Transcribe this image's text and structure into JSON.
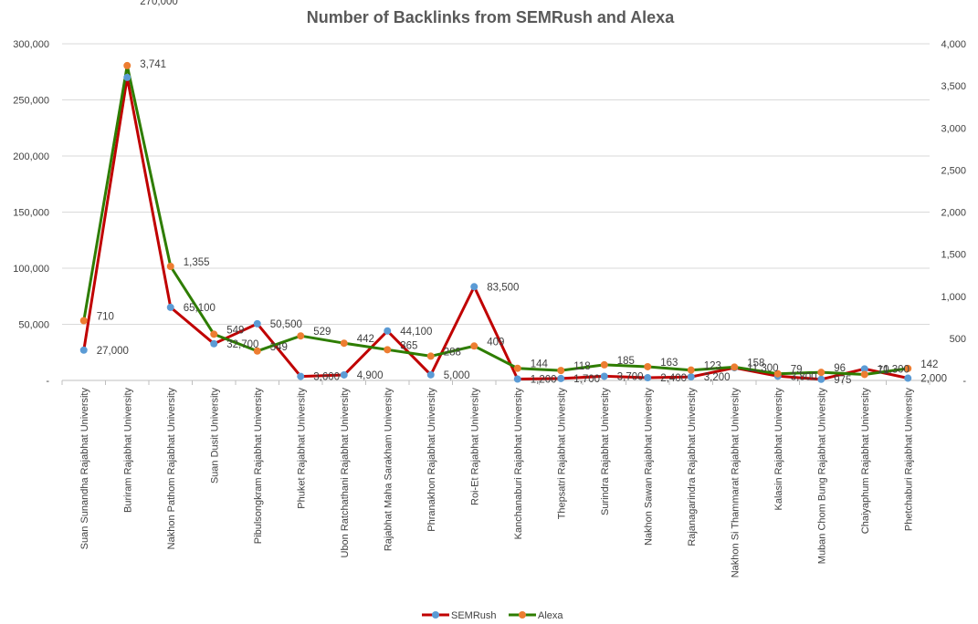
{
  "chart_data": {
    "type": "line",
    "title": "Number of Backlinks from SEMRush and Alexa",
    "categories": [
      "Suan Sunandha Rajabhat University",
      "Buriram Rajabhat University",
      "Nakhon Pathom Rajabhat University",
      "Suan Dusit University",
      "Pibulsongkram Rajabhat University",
      "Phuket Rajabhat University",
      "Ubon Ratchathani Rajabhat University",
      "Rajabhat Maha Sarakham University",
      "Phranakhon Rajabhat University",
      "Roi-Et Rajabhat University",
      "Kanchanaburi Rajabhat University",
      "Thepsatri Rajabhat University",
      "Surindra Rajabhat University",
      "Nakhon Sawan Rajabhat University",
      "Rajanagarindra Rajabhat University",
      "Nakhon Si Thammarat Rajabhat University",
      "Kalasin Rajabhat University",
      "Muban Chom Bung Rajabhat University",
      "Chaiyaphum Rajabhat University",
      "Phetchaburi Rajabhat University"
    ],
    "y_left": {
      "range": [
        0,
        300000
      ],
      "ticks": [
        0,
        50000,
        100000,
        150000,
        200000,
        250000,
        300000
      ],
      "tick_labels": [
        "-",
        "50,000",
        "100,000",
        "150,000",
        "200,000",
        "250,000",
        "300,000"
      ]
    },
    "y_right": {
      "range": [
        0,
        4000
      ],
      "ticks": [
        0,
        500,
        1000,
        1500,
        2000,
        2500,
        3000,
        3500,
        4000
      ],
      "tick_labels": [
        "-",
        "500",
        "1,000",
        "1,500",
        "2,000",
        "2,500",
        "3,000",
        "3,500",
        "4,000"
      ]
    },
    "grid": true,
    "legend_position": "bottom",
    "series": [
      {
        "name": "SEMRush",
        "axis": "left",
        "line_color": "#c00000",
        "marker_color": "#5b9bd5",
        "values": [
          27000,
          270000,
          65100,
          32700,
          50500,
          3600,
          4900,
          44100,
          5000,
          83500,
          1200,
          1700,
          3700,
          2400,
          3200,
          11300,
          3800,
          975,
          10300,
          2000
        ],
        "labels": [
          "27,000",
          "270,000",
          "65,100",
          "32,700",
          "50,500",
          "3,600",
          "4,900",
          "44,100",
          "5,000",
          "83,500",
          "1,200",
          "1,700",
          "3,700",
          "2,400",
          "3,200",
          "11,300",
          "3,800",
          "975",
          "10,300",
          "2,000"
        ]
      },
      {
        "name": "Alexa",
        "axis": "right",
        "line_color": "#2e7d00",
        "marker_color": "#ed7d31",
        "values": [
          710,
          3741,
          1355,
          549,
          349,
          529,
          442,
          365,
          288,
          409,
          144,
          118,
          185,
          163,
          123,
          158,
          79,
          96,
          71,
          142
        ],
        "labels": [
          "710",
          "3,741",
          "1,355",
          "549",
          "349",
          "529",
          "442",
          "365",
          "288",
          "409",
          "144",
          "118",
          "185",
          "163",
          "123",
          "158",
          "79",
          "96",
          "71",
          "142"
        ]
      }
    ]
  }
}
